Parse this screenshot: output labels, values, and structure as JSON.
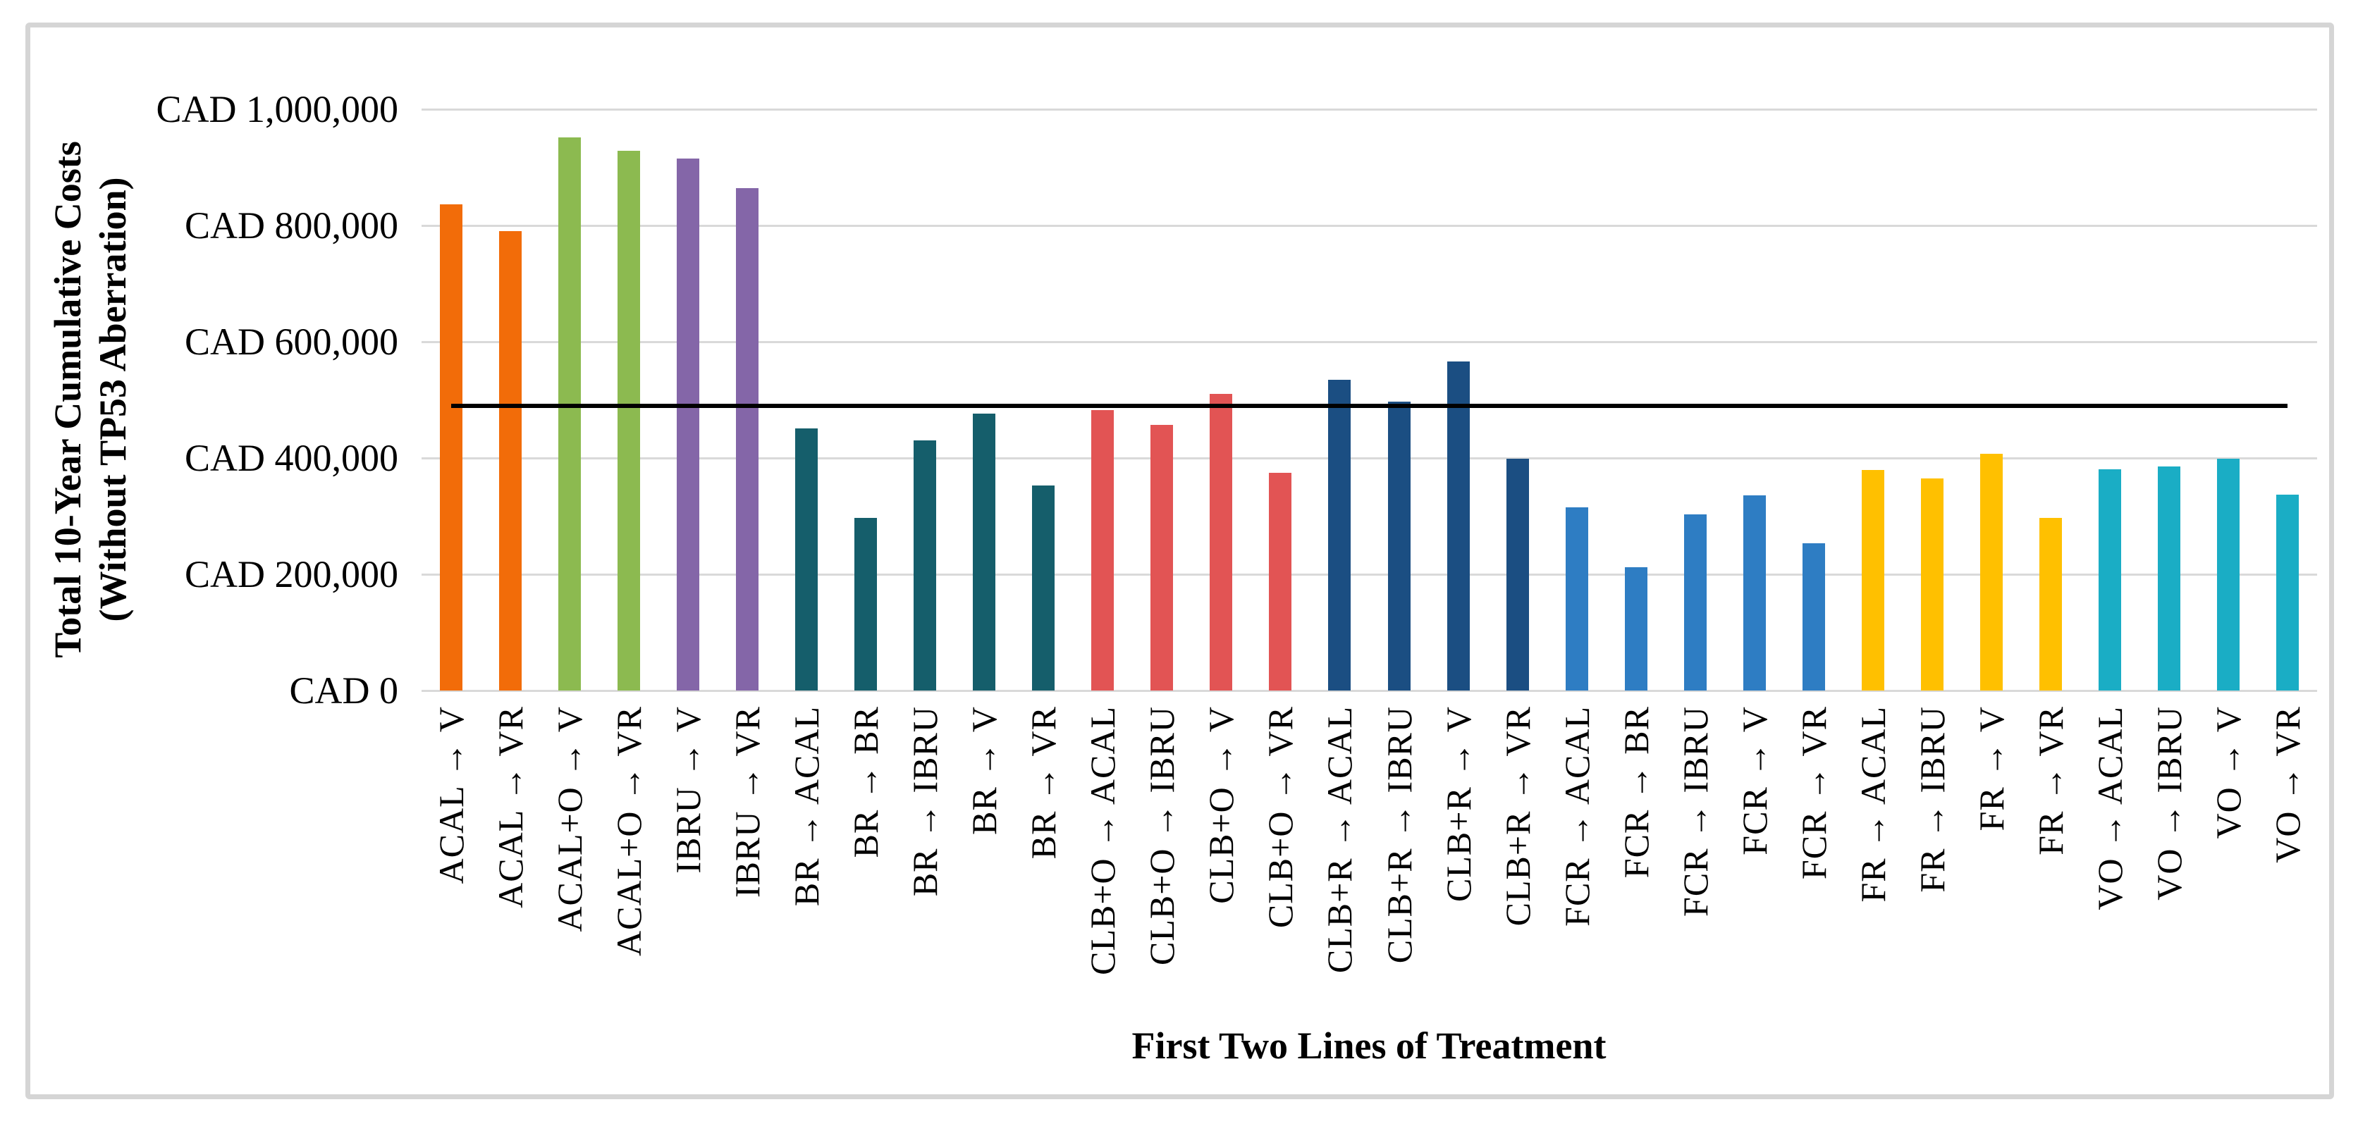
{
  "figure": {
    "y_axis_title_line1": "Total 10-Year Cumulative Costs",
    "y_axis_title_line2": "(Without TP53 Aberration)",
    "x_axis_title": "First Two Lines of Treatment"
  },
  "style": {
    "background": "#FFFFFF",
    "frame_border_color": "#D5D5D5",
    "gridline_color": "#D9D9D9",
    "text_color": "#000000",
    "reference_line_color": "#000000"
  },
  "chart_data": {
    "type": "bar",
    "title": "",
    "xlabel": "First Two Lines of Treatment",
    "ylabel": "Total 10-Year Cumulative Costs (Without TP53 Aberration)",
    "currency": "CAD",
    "ylim": [
      0,
      1000000
    ],
    "y_ticks": [
      0,
      200000,
      400000,
      600000,
      800000,
      1000000
    ],
    "y_tick_labels": [
      "CAD 0",
      "CAD 200,000",
      "CAD 400,000",
      "CAD 600,000",
      "CAD 800,000",
      "CAD 1,000,000"
    ],
    "grid": true,
    "legend": false,
    "bar_orientation": "vertical",
    "reference_line": {
      "value": 490000,
      "color": "#000000"
    },
    "categories": [
      "ACAL → V",
      "ACAL → VR",
      "ACAL+O → V",
      "ACAL+O → VR",
      "IBRU → V",
      "IBRU → VR",
      "BR → ACAL",
      "BR → BR",
      "BR → IBRU",
      "BR → V",
      "BR → VR",
      "CLB+O → ACAL",
      "CLB+O → IBRU",
      "CLB+O → V",
      "CLB+O → VR",
      "CLB+R → ACAL",
      "CLB+R → IBRU",
      "CLB+R → V",
      "CLB+R → VR",
      "FCR → ACAL",
      "FCR → BR",
      "FCR → IBRU",
      "FCR → V",
      "FCR → VR",
      "FR → ACAL",
      "FR → IBRU",
      "FR → V",
      "FR → VR",
      "VO → ACAL",
      "VO → IBRU",
      "VO → V",
      "VO → VR"
    ],
    "values": [
      836000,
      790000,
      951000,
      928000,
      915000,
      864000,
      451000,
      297000,
      430000,
      476000,
      353000,
      483000,
      457000,
      510000,
      374000,
      534000,
      497000,
      566000,
      399000,
      315000,
      212000,
      303000,
      336000,
      253000,
      380000,
      365000,
      407000,
      297000,
      381000,
      385000,
      399000,
      337000
    ],
    "colors": [
      "#F26C09",
      "#F26C09",
      "#8CBA50",
      "#8CBA50",
      "#8466A8",
      "#8466A8",
      "#155E6B",
      "#155E6B",
      "#155E6B",
      "#155E6B",
      "#155E6B",
      "#E25454",
      "#E25454",
      "#E25454",
      "#E25454",
      "#1B4E82",
      "#1B4E82",
      "#1B4E82",
      "#1B4E82",
      "#2E7DC3",
      "#2E7DC3",
      "#2E7DC3",
      "#2E7DC3",
      "#2E7DC3",
      "#FFC000",
      "#FFC000",
      "#FFC000",
      "#FFC000",
      "#1AADC5",
      "#1AADC5",
      "#1AADC5",
      "#1AADC5"
    ],
    "groups": [
      {
        "first_line": "ACAL",
        "color": "#F26C09",
        "bars": 2
      },
      {
        "first_line": "ACAL+O",
        "color": "#8CBA50",
        "bars": 2
      },
      {
        "first_line": "IBRU",
        "color": "#8466A8",
        "bars": 2
      },
      {
        "first_line": "BR",
        "color": "#155E6B",
        "bars": 5
      },
      {
        "first_line": "CLB+O",
        "color": "#E25454",
        "bars": 4
      },
      {
        "first_line": "CLB+R",
        "color": "#1B4E82",
        "bars": 4
      },
      {
        "first_line": "FCR",
        "color": "#2E7DC3",
        "bars": 5
      },
      {
        "first_line": "FR",
        "color": "#FFC000",
        "bars": 4
      },
      {
        "first_line": "VO",
        "color": "#1AADC5",
        "bars": 4
      }
    ]
  }
}
